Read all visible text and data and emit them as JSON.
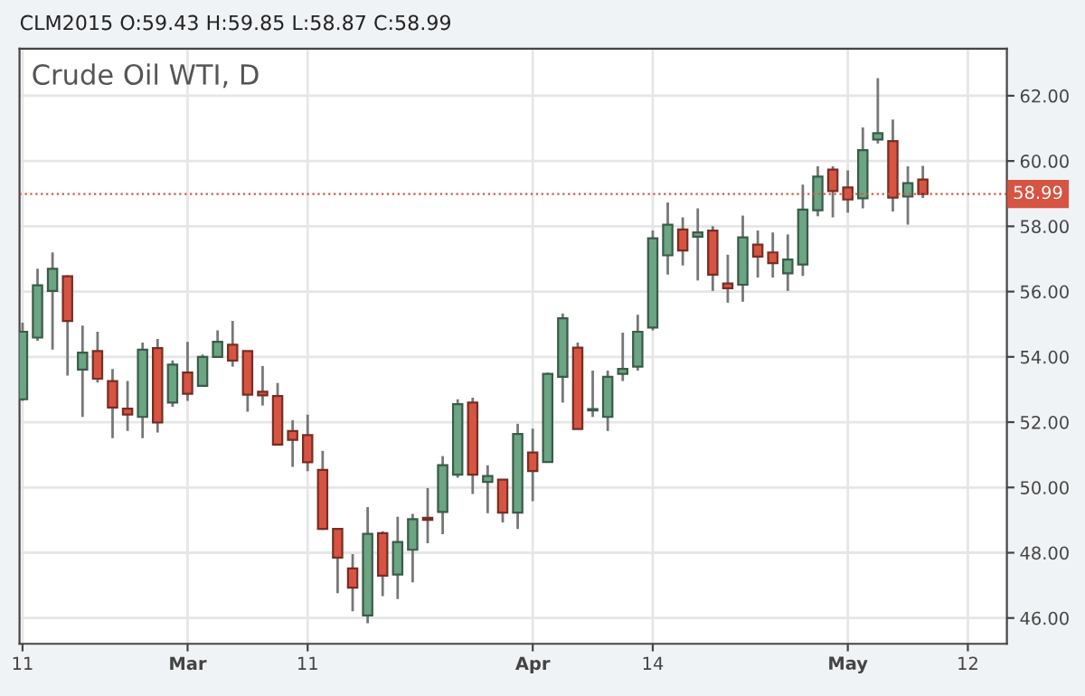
{
  "chart_data": {
    "type": "candlestick",
    "title": "Crude Oil WTI, D",
    "subtitle": "CLM2015 O:59.43 H:59.85 L:58.87 C:58.99",
    "categories": [
      "11",
      null,
      null,
      null,
      null,
      null,
      null,
      null,
      null,
      null,
      null,
      "Mar",
      null,
      null,
      null,
      null,
      null,
      null,
      null,
      "11",
      null,
      null,
      null,
      null,
      null,
      null,
      null,
      null,
      null,
      null,
      null,
      null,
      null,
      null,
      "Apr",
      null,
      null,
      null,
      null,
      null,
      null,
      null,
      "14",
      null,
      null,
      null,
      null,
      null,
      null,
      null,
      null,
      null,
      null,
      null,
      null,
      "May",
      null,
      null,
      null,
      null,
      null,
      null,
      null,
      "12",
      null,
      null
    ],
    "ohlc": [
      [
        52.7,
        55.05,
        52.65,
        54.77
      ],
      [
        54.59,
        56.7,
        54.49,
        56.19
      ],
      [
        56.02,
        57.2,
        54.22,
        56.7
      ],
      [
        56.47,
        56.5,
        53.43,
        55.1
      ],
      [
        53.61,
        54.96,
        52.16,
        54.13
      ],
      [
        54.18,
        54.77,
        53.21,
        53.33
      ],
      [
        53.26,
        53.63,
        51.51,
        52.45
      ],
      [
        52.41,
        53.26,
        51.73,
        52.23
      ],
      [
        52.16,
        54.44,
        51.51,
        54.22
      ],
      [
        54.27,
        54.55,
        51.68,
        51.99
      ],
      [
        52.6,
        53.89,
        52.47,
        53.76
      ],
      [
        53.52,
        54.46,
        52.65,
        52.87
      ],
      [
        53.11,
        54.07,
        53.08,
        54.0
      ],
      [
        54.0,
        54.81,
        54.0,
        54.46
      ],
      [
        54.37,
        55.1,
        53.7,
        53.89
      ],
      [
        54.18,
        54.18,
        52.32,
        52.84
      ],
      [
        52.93,
        53.72,
        52.51,
        52.82
      ],
      [
        52.8,
        53.2,
        51.3,
        51.31
      ],
      [
        51.73,
        52.06,
        50.63,
        51.46
      ],
      [
        51.6,
        52.23,
        50.5,
        50.77
      ],
      [
        50.54,
        51.12,
        48.7,
        48.73
      ],
      [
        48.73,
        48.73,
        46.76,
        47.85
      ],
      [
        47.52,
        47.96,
        46.21,
        46.93
      ],
      [
        46.08,
        49.4,
        45.84,
        48.58
      ],
      [
        48.6,
        48.66,
        46.67,
        47.3
      ],
      [
        47.33,
        49.1,
        46.58,
        48.33
      ],
      [
        48.09,
        49.19,
        47.09,
        49.03
      ],
      [
        49.07,
        49.98,
        48.29,
        49.01
      ],
      [
        49.25,
        50.96,
        48.57,
        50.68
      ],
      [
        50.39,
        52.7,
        50.3,
        52.55
      ],
      [
        52.6,
        52.75,
        49.8,
        50.39
      ],
      [
        50.17,
        50.68,
        49.21,
        50.35
      ],
      [
        50.24,
        50.24,
        48.93,
        49.23
      ],
      [
        49.23,
        51.95,
        48.73,
        51.64
      ],
      [
        51.07,
        51.8,
        49.58,
        50.5
      ],
      [
        50.78,
        53.52,
        50.78,
        53.48
      ],
      [
        53.39,
        55.33,
        52.6,
        55.18
      ],
      [
        54.28,
        54.44,
        51.79,
        51.79
      ],
      [
        52.36,
        53.58,
        52.16,
        52.4
      ],
      [
        52.16,
        53.58,
        51.73,
        53.39
      ],
      [
        53.48,
        54.74,
        53.26,
        53.63
      ],
      [
        53.7,
        55.29,
        53.58,
        54.77
      ],
      [
        54.9,
        57.87,
        54.81,
        57.63
      ],
      [
        57.11,
        58.73,
        56.52,
        58.05
      ],
      [
        57.9,
        58.27,
        56.8,
        57.26
      ],
      [
        57.68,
        58.55,
        56.34,
        57.81
      ],
      [
        57.87,
        58.0,
        56.02,
        56.52
      ],
      [
        56.25,
        57.13,
        55.66,
        56.1
      ],
      [
        56.21,
        58.33,
        55.69,
        57.66
      ],
      [
        57.44,
        57.87,
        56.43,
        57.07
      ],
      [
        57.2,
        57.81,
        56.43,
        56.87
      ],
      [
        56.56,
        57.75,
        56.02,
        56.98
      ],
      [
        56.83,
        59.28,
        56.48,
        58.51
      ],
      [
        58.49,
        59.84,
        58.31,
        59.52
      ],
      [
        59.74,
        59.84,
        58.27,
        59.08
      ],
      [
        59.19,
        59.71,
        58.42,
        58.82
      ],
      [
        58.86,
        61.03,
        58.55,
        60.33
      ],
      [
        60.66,
        62.54,
        60.54,
        60.85
      ],
      [
        60.61,
        61.27,
        58.45,
        58.88
      ],
      [
        58.91,
        59.84,
        58.05,
        59.32
      ],
      [
        59.43,
        59.85,
        58.87,
        58.99
      ],
      null,
      null,
      null,
      null,
      null
    ],
    "colors": [
      "#6ba583",
      "#6ba583",
      "#6ba583",
      "#d75442",
      "#6ba583",
      "#d75442",
      "#d75442",
      "#d75442",
      "#6ba583",
      "#d75442",
      "#6ba583",
      "#d75442",
      "#6ba583",
      "#6ba583",
      "#d75442",
      "#d75442",
      "#d75442",
      "#d75442",
      "#d75442",
      "#d75442",
      "#d75442",
      "#d75442",
      "#d75442",
      "#6ba583",
      "#d75442",
      "#6ba583",
      "#6ba583",
      "#d75442",
      "#6ba583",
      "#6ba583",
      "#d75442",
      "#6ba583",
      "#d75442",
      "#6ba583",
      "#d75442",
      "#6ba583",
      "#6ba583",
      "#d75442",
      "#6ba583",
      "#6ba583",
      "#6ba583",
      "#6ba583",
      "#6ba583",
      "#6ba583",
      "#d75442",
      "#6ba583",
      "#d75442",
      "#d75442",
      "#6ba583",
      "#d75442",
      "#d75442",
      "#6ba583",
      "#6ba583",
      "#6ba583",
      "#d75442",
      "#d75442",
      "#6ba583",
      "#6ba583",
      "#d75442",
      "#6ba583",
      "#d75442",
      null,
      null,
      null,
      null,
      null
    ],
    "ylim": [
      45.21,
      63.44
    ],
    "yticks": [
      {
        "value": 46,
        "label": "46.00"
      },
      {
        "value": 48,
        "label": "48.00"
      },
      {
        "value": 50,
        "label": "50.00"
      },
      {
        "value": 52,
        "label": "52.00"
      },
      {
        "value": 54,
        "label": "54.00"
      },
      {
        "value": 56,
        "label": "56.00"
      },
      {
        "value": 58,
        "label": "58.00"
      },
      {
        "value": 60,
        "label": "60.00"
      },
      {
        "value": 62,
        "label": "62.00"
      }
    ],
    "ref_lines": [
      {
        "axis": "y",
        "value": 58.99,
        "label": "58.99",
        "color": "#d75442",
        "line_style": "dotted"
      }
    ],
    "grid": true
  }
}
